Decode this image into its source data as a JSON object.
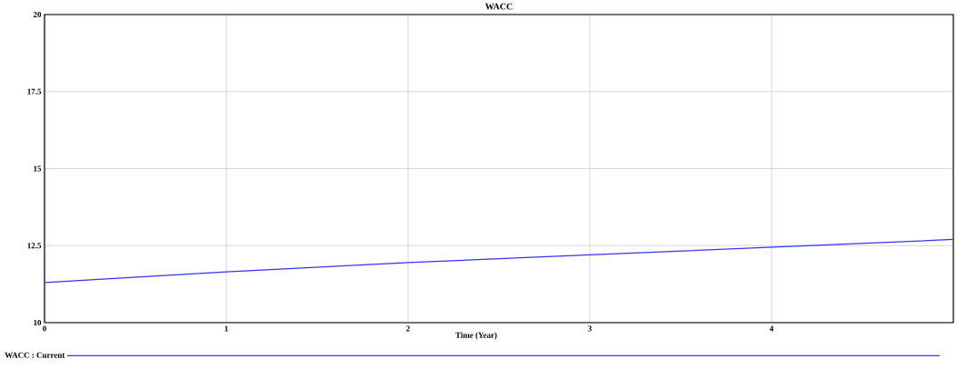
{
  "chart_data": {
    "type": "line",
    "title": "WACC",
    "xlabel": "Time (Year)",
    "x": [
      0,
      1,
      2,
      3,
      4,
      5
    ],
    "series": [
      {
        "name": "WACC : Current",
        "color": "#3333ff",
        "values": [
          11.3,
          11.65,
          11.95,
          12.2,
          12.45,
          12.7
        ]
      }
    ],
    "xlim": [
      0,
      5
    ],
    "ylim": [
      10,
      20
    ],
    "xticks": [
      0,
      1,
      2,
      3,
      4
    ],
    "yticks": [
      10,
      12.5,
      15,
      17.5,
      20
    ],
    "grid": true,
    "legend": "bottom",
    "marker": "none",
    "line_style": "solid"
  }
}
